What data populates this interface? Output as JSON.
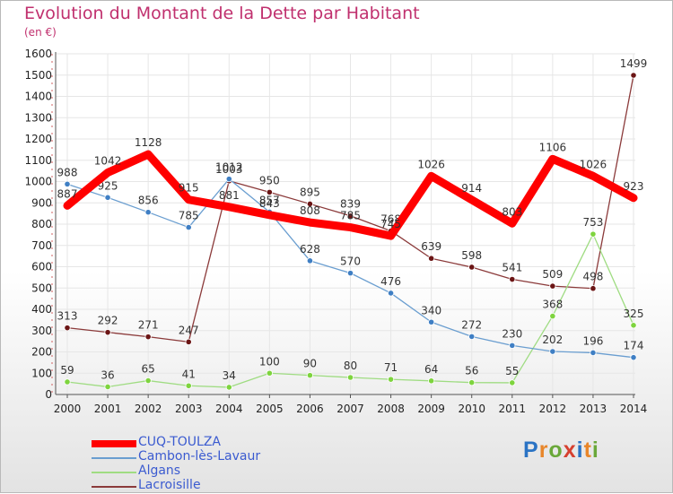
{
  "title": "Evolution du Montant de la Dette par Habitant",
  "unit_label": "(en €)",
  "logo": {
    "text": "Proxiti",
    "colors": [
      "#2a73c4",
      "#e8862a",
      "#6aa83a",
      "#d6402f",
      "#2a73c4",
      "#e8862a",
      "#6aa83a"
    ]
  },
  "chart_data": {
    "type": "line",
    "title": "Evolution du Montant de la Dette par Habitant",
    "ylabel": "(en €)",
    "xlabel": "",
    "ylim": [
      0,
      1600
    ],
    "yticks": [
      0,
      100,
      200,
      300,
      400,
      500,
      600,
      700,
      800,
      900,
      1000,
      1100,
      1200,
      1300,
      1400,
      1500,
      1600
    ],
    "grid": true,
    "legend_position": "bottom-left",
    "x": [
      "2000",
      "2001",
      "2002",
      "2003",
      "2004",
      "2005",
      "2006",
      "2007",
      "2008",
      "2009",
      "2010",
      "2011",
      "2012",
      "2013",
      "2014"
    ],
    "series": [
      {
        "name": "Lacroisille",
        "color": "#8b3a3a",
        "marker": "#6b1515",
        "values": [
          313,
          292,
          271,
          247,
          1003,
          950,
          895,
          839,
          768,
          639,
          598,
          541,
          509,
          498,
          1499
        ]
      },
      {
        "name": "Algans",
        "color": "#9fdc82",
        "marker": "#7ed43e",
        "values": [
          59,
          36,
          65,
          41,
          34,
          100,
          90,
          80,
          71,
          64,
          56,
          55,
          368,
          753,
          325
        ]
      },
      {
        "name": "Cambon-lès-Lavaur",
        "color": "#6a9ed0",
        "marker": "#3f7fc4",
        "values": [
          988,
          925,
          856,
          785,
          1012,
          857,
          628,
          570,
          476,
          340,
          272,
          230,
          202,
          196,
          174
        ]
      },
      {
        "name": "CUQ-TOULZA",
        "color": "#ff0000",
        "marker": "#ff0000",
        "bold": true,
        "values": [
          887,
          1042,
          1128,
          915,
          881,
          843,
          808,
          785,
          745,
          1026,
          914,
          803,
          1106,
          1026,
          923
        ]
      }
    ],
    "legend": [
      {
        "name": "CUQ-TOULZA",
        "color": "#ff0000",
        "bold": true
      },
      {
        "name": "Cambon-lès-Lavaur",
        "color": "#6a9ed0"
      },
      {
        "name": "Algans",
        "color": "#9fdc82"
      },
      {
        "name": "Lacroisille",
        "color": "#8b3a3a"
      }
    ]
  }
}
